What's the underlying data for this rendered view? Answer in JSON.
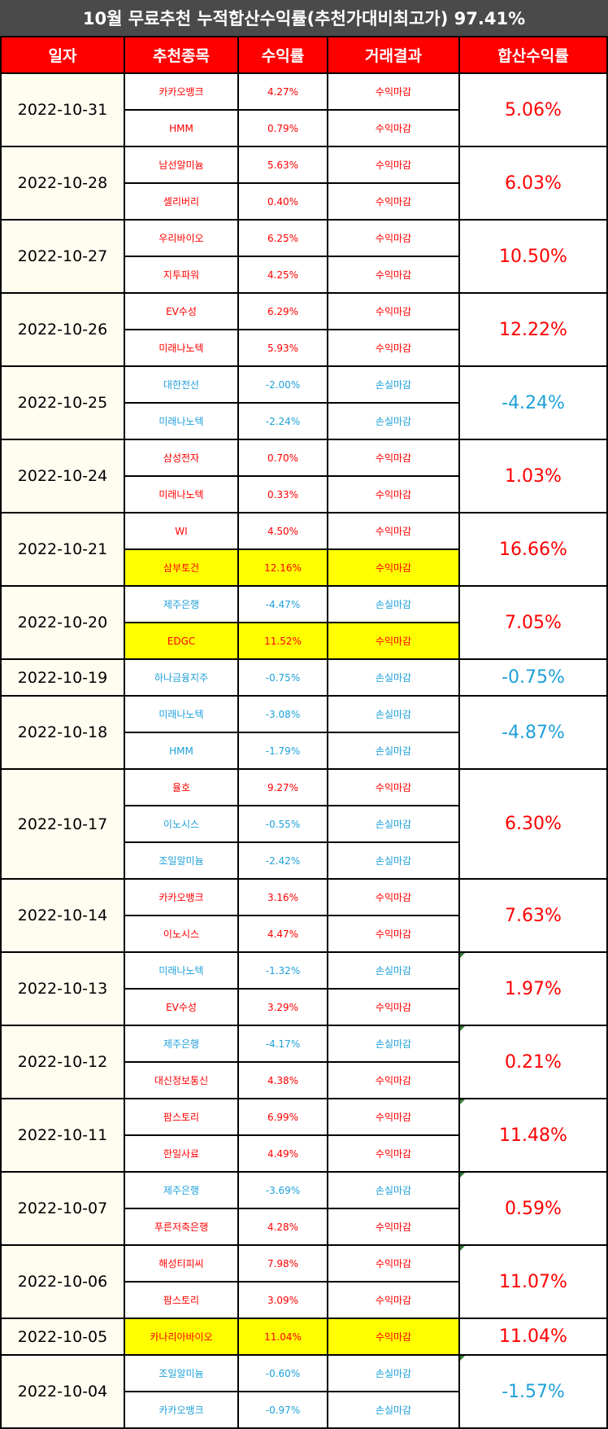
{
  "title": "10월 무료추천 누적합산수익률(추천가대비최고가) 97.41%",
  "headers": [
    "일자",
    "추천종목",
    "수익률",
    "거래결과",
    "합산수익률"
  ],
  "colors": {
    "profit": "#ff0000",
    "loss": "#1ea0d8",
    "highlight": "#ffff00",
    "header_bg": "#ff0000",
    "title_bg": "#4a4a4a",
    "date_bg": "#fffcf0"
  },
  "groups": [
    {
      "date": "2022-10-31",
      "total": "5.06%",
      "total_sign": "pos",
      "rows": [
        {
          "name": "카카오뱅크",
          "rate": "4.27%",
          "result": "수익마감",
          "sign": "pos",
          "highlight": false
        },
        {
          "name": "HMM",
          "rate": "0.79%",
          "result": "수익마감",
          "sign": "pos",
          "highlight": false
        }
      ]
    },
    {
      "date": "2022-10-28",
      "total": "6.03%",
      "total_sign": "pos",
      "rows": [
        {
          "name": "남선알미늄",
          "rate": "5.63%",
          "result": "수익마감",
          "sign": "pos",
          "highlight": false
        },
        {
          "name": "셀리버리",
          "rate": "0.40%",
          "result": "수익마감",
          "sign": "pos",
          "highlight": false
        }
      ]
    },
    {
      "date": "2022-10-27",
      "total": "10.50%",
      "total_sign": "pos",
      "rows": [
        {
          "name": "우리바이오",
          "rate": "6.25%",
          "result": "수익마감",
          "sign": "pos",
          "highlight": false
        },
        {
          "name": "지투파워",
          "rate": "4.25%",
          "result": "수익마감",
          "sign": "pos",
          "highlight": false
        }
      ]
    },
    {
      "date": "2022-10-26",
      "total": "12.22%",
      "total_sign": "pos",
      "rows": [
        {
          "name": "EV수성",
          "rate": "6.29%",
          "result": "수익마감",
          "sign": "pos",
          "highlight": false
        },
        {
          "name": "미래나노텍",
          "rate": "5.93%",
          "result": "수익마감",
          "sign": "pos",
          "highlight": false
        }
      ]
    },
    {
      "date": "2022-10-25",
      "total": "-4.24%",
      "total_sign": "neg",
      "rows": [
        {
          "name": "대한전선",
          "rate": "-2.00%",
          "result": "손실마감",
          "sign": "neg",
          "highlight": false
        },
        {
          "name": "미래나노텍",
          "rate": "-2.24%",
          "result": "손실마감",
          "sign": "neg",
          "highlight": false
        }
      ]
    },
    {
      "date": "2022-10-24",
      "total": "1.03%",
      "total_sign": "pos",
      "rows": [
        {
          "name": "삼성전자",
          "rate": "0.70%",
          "result": "수익마감",
          "sign": "pos",
          "highlight": false
        },
        {
          "name": "미래나노텍",
          "rate": "0.33%",
          "result": "수익마감",
          "sign": "pos",
          "highlight": false
        }
      ]
    },
    {
      "date": "2022-10-21",
      "total": "16.66%",
      "total_sign": "pos",
      "rows": [
        {
          "name": "WI",
          "rate": "4.50%",
          "result": "수익마감",
          "sign": "pos",
          "highlight": false
        },
        {
          "name": "삼부토건",
          "rate": "12.16%",
          "result": "수익마감",
          "sign": "pos",
          "highlight": true
        }
      ]
    },
    {
      "date": "2022-10-20",
      "total": "7.05%",
      "total_sign": "pos",
      "rows": [
        {
          "name": "제주은행",
          "rate": "-4.47%",
          "result": "손실마감",
          "sign": "neg",
          "highlight": false
        },
        {
          "name": "EDGC",
          "rate": "11.52%",
          "result": "수익마감",
          "sign": "pos",
          "highlight": true
        }
      ]
    },
    {
      "date": "2022-10-19",
      "total": "-0.75%",
      "total_sign": "neg",
      "rows": [
        {
          "name": "하나금융지주",
          "rate": "-0.75%",
          "result": "손실마감",
          "sign": "neg",
          "highlight": false
        }
      ]
    },
    {
      "date": "2022-10-18",
      "total": "-4.87%",
      "total_sign": "neg",
      "rows": [
        {
          "name": "미래나노텍",
          "rate": "-3.08%",
          "result": "손실마감",
          "sign": "neg",
          "highlight": false
        },
        {
          "name": "HMM",
          "rate": "-1.79%",
          "result": "손실마감",
          "sign": "neg",
          "highlight": false
        }
      ]
    },
    {
      "date": "2022-10-17",
      "total": "6.30%",
      "total_sign": "pos",
      "rows": [
        {
          "name": "율호",
          "rate": "9.27%",
          "result": "수익마감",
          "sign": "pos",
          "highlight": false
        },
        {
          "name": "이노시스",
          "rate": "-0.55%",
          "result": "손실마감",
          "sign": "neg",
          "highlight": false
        },
        {
          "name": "조일알미늄",
          "rate": "-2.42%",
          "result": "손실마감",
          "sign": "neg",
          "highlight": false
        }
      ]
    },
    {
      "date": "2022-10-14",
      "total": "7.63%",
      "total_sign": "pos",
      "rows": [
        {
          "name": "카카오뱅크",
          "rate": "3.16%",
          "result": "수익마감",
          "sign": "pos",
          "highlight": false
        },
        {
          "name": "이노시스",
          "rate": "4.47%",
          "result": "수익마감",
          "sign": "pos",
          "highlight": false
        }
      ]
    },
    {
      "date": "2022-10-13",
      "total": "1.97%",
      "total_sign": "pos",
      "rows": [
        {
          "name": "미래나노텍",
          "rate": "-1.32%",
          "result": "손실마감",
          "sign": "neg",
          "highlight": false
        },
        {
          "name": "EV수성",
          "rate": "3.29%",
          "result": "수익마감",
          "sign": "pos",
          "highlight": false
        }
      ]
    },
    {
      "date": "2022-10-12",
      "total": "0.21%",
      "total_sign": "pos",
      "rows": [
        {
          "name": "제주은행",
          "rate": "-4.17%",
          "result": "손실마감",
          "sign": "neg",
          "highlight": false
        },
        {
          "name": "대신정보통신",
          "rate": "4.38%",
          "result": "수익마감",
          "sign": "pos",
          "highlight": false
        }
      ]
    },
    {
      "date": "2022-10-11",
      "total": "11.48%",
      "total_sign": "pos",
      "rows": [
        {
          "name": "팜스토리",
          "rate": "6.99%",
          "result": "수익마감",
          "sign": "pos",
          "highlight": false
        },
        {
          "name": "한일사료",
          "rate": "4.49%",
          "result": "수익마감",
          "sign": "pos",
          "highlight": false
        }
      ]
    },
    {
      "date": "2022-10-07",
      "total": "0.59%",
      "total_sign": "pos",
      "rows": [
        {
          "name": "제주은행",
          "rate": "-3.69%",
          "result": "손실마감",
          "sign": "neg",
          "highlight": false
        },
        {
          "name": "푸른저축은행",
          "rate": "4.28%",
          "result": "수익마감",
          "sign": "pos",
          "highlight": false
        }
      ]
    },
    {
      "date": "2022-10-06",
      "total": "11.07%",
      "total_sign": "pos",
      "rows": [
        {
          "name": "해성티피씨",
          "rate": "7.98%",
          "result": "수익마감",
          "sign": "pos",
          "highlight": false
        },
        {
          "name": "팜스토리",
          "rate": "3.09%",
          "result": "수익마감",
          "sign": "pos",
          "highlight": false
        }
      ]
    },
    {
      "date": "2022-10-05",
      "total": "11.04%",
      "total_sign": "pos",
      "rows": [
        {
          "name": "카나리아바이오",
          "rate": "11.04%",
          "result": "수익마감",
          "sign": "pos",
          "highlight": true
        }
      ]
    },
    {
      "date": "2022-10-04",
      "total": "-1.57%",
      "total_sign": "neg",
      "rows": [
        {
          "name": "조일알미늄",
          "rate": "-0.60%",
          "result": "손실마감",
          "sign": "neg",
          "highlight": false
        },
        {
          "name": "카카오뱅크",
          "rate": "-0.97%",
          "result": "손실마감",
          "sign": "neg",
          "highlight": false
        }
      ]
    }
  ]
}
